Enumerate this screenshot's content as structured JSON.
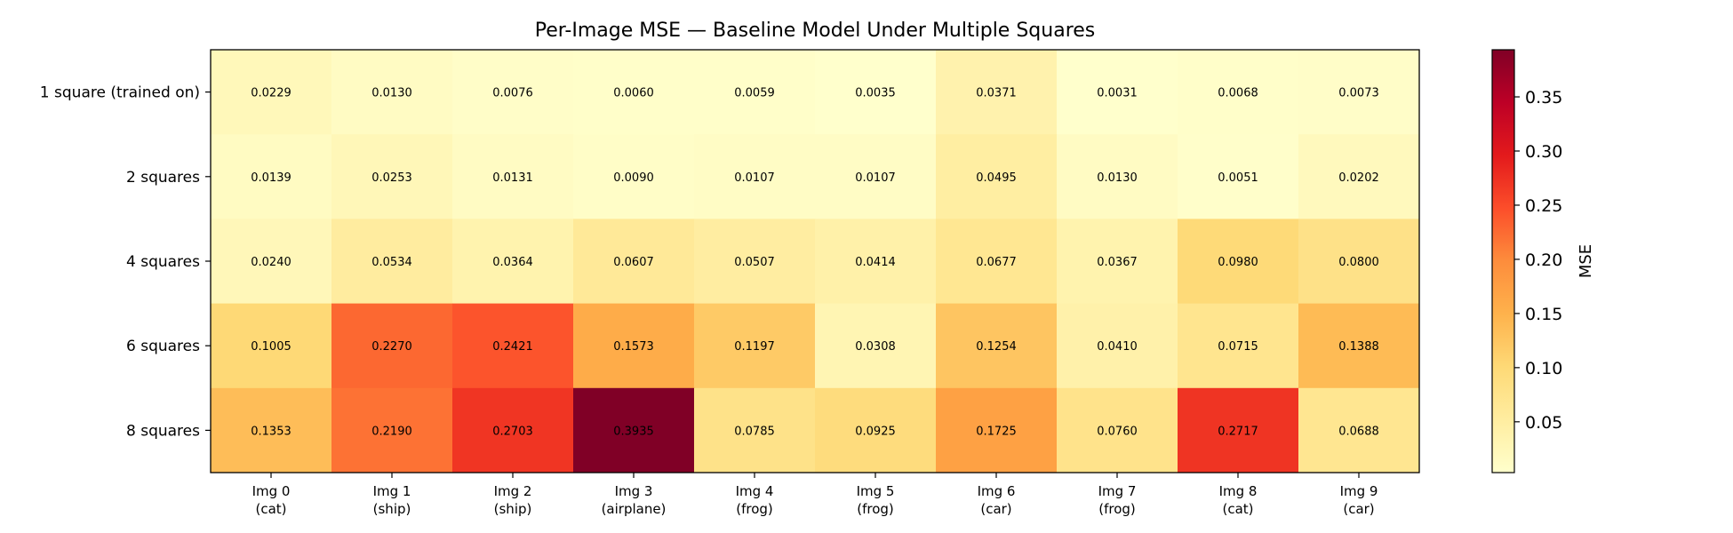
{
  "chart_data": {
    "type": "heatmap",
    "title": "Per-Image MSE — Baseline Model Under Multiple Squares",
    "rows": [
      "1 square (trained on)",
      "2 squares",
      "4 squares",
      "6 squares",
      "8 squares"
    ],
    "columns": [
      [
        "Img 0",
        "(cat)"
      ],
      [
        "Img 1",
        "(ship)"
      ],
      [
        "Img 2",
        "(ship)"
      ],
      [
        "Img 3",
        "(airplane)"
      ],
      [
        "Img 4",
        "(frog)"
      ],
      [
        "Img 5",
        "(frog)"
      ],
      [
        "Img 6",
        "(car)"
      ],
      [
        "Img 7",
        "(frog)"
      ],
      [
        "Img 8",
        "(cat)"
      ],
      [
        "Img 9",
        "(car)"
      ]
    ],
    "values": [
      [
        0.0229,
        0.013,
        0.0076,
        0.006,
        0.0059,
        0.0035,
        0.0371,
        0.0031,
        0.0068,
        0.0073
      ],
      [
        0.0139,
        0.0253,
        0.0131,
        0.009,
        0.0107,
        0.0107,
        0.0495,
        0.013,
        0.0051,
        0.0202
      ],
      [
        0.024,
        0.0534,
        0.0364,
        0.0607,
        0.0507,
        0.0414,
        0.0677,
        0.0367,
        0.098,
        0.08
      ],
      [
        0.1005,
        0.227,
        0.2421,
        0.1573,
        0.1197,
        0.0308,
        0.1254,
        0.041,
        0.0715,
        0.1388
      ],
      [
        0.1353,
        0.219,
        0.2703,
        0.3935,
        0.0785,
        0.0925,
        0.1725,
        0.076,
        0.2717,
        0.0688
      ]
    ],
    "colormap": "YlOrRd",
    "colormap_stops": [
      "#ffffcc",
      "#ffeda0",
      "#fed976",
      "#feb24c",
      "#fd8d3c",
      "#fc4e2a",
      "#e31a1c",
      "#bd0026",
      "#800026"
    ],
    "vmin": 0.0031,
    "vmax": 0.3935,
    "colorbar_label": "MSE",
    "colorbar_ticks": [
      0.05,
      0.1,
      0.15,
      0.2,
      0.25,
      0.3,
      0.35
    ],
    "colorbar_tick_labels": [
      "0.05",
      "0.10",
      "0.15",
      "0.20",
      "0.25",
      "0.30",
      "0.35"
    ],
    "cell_label_decimals": 4
  }
}
